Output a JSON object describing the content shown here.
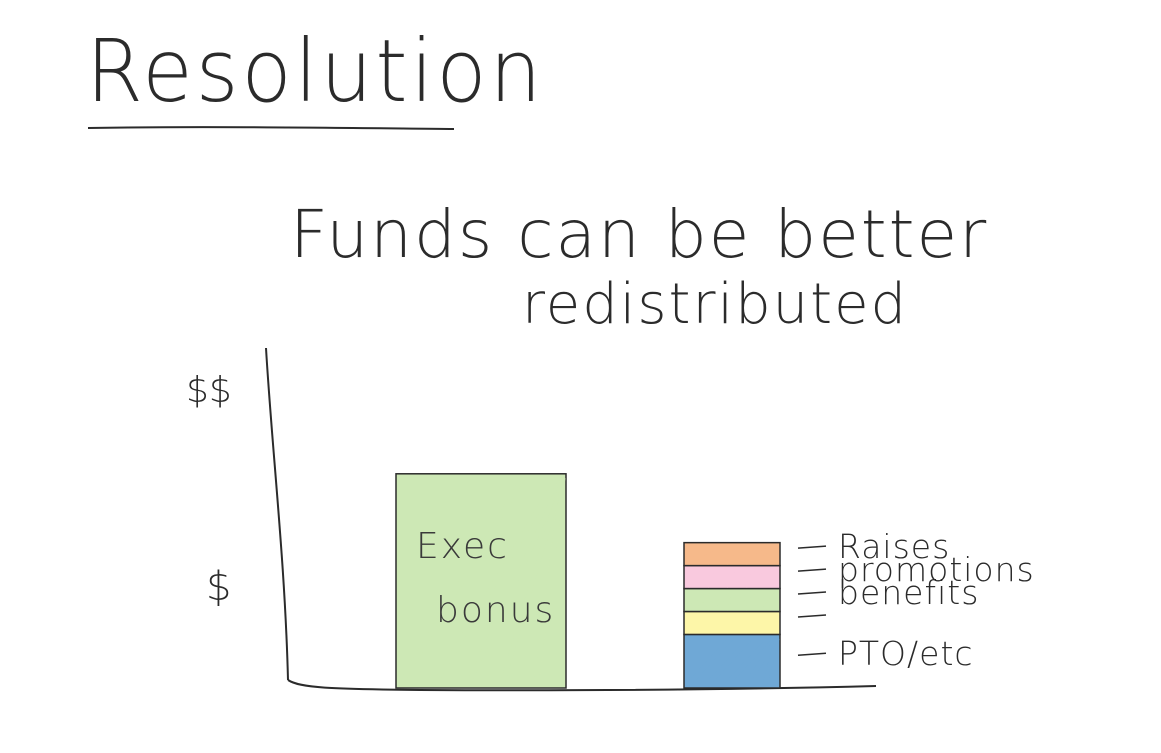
{
  "heading": "Resolution",
  "subtitle": {
    "line1": "Funds can be better",
    "line2": "redistributed"
  },
  "chart_data": {
    "type": "bar",
    "title": "",
    "xlabel": "",
    "ylabel": "",
    "y_ticks": [
      "$$",
      "$"
    ],
    "bars": [
      {
        "label_lines": [
          "Exec",
          "bonus"
        ],
        "stacked": false,
        "segments": [
          {
            "name": "",
            "value": 1.4,
            "color": "#cde8b5"
          }
        ]
      },
      {
        "label_lines": [],
        "stacked": true,
        "segments": [
          {
            "name": "PTO/etc",
            "value": 0.35,
            "color": "#6fa8d6"
          },
          {
            "name": "",
            "value": 0.15,
            "color": "#fdf6a8"
          },
          {
            "name": "benefits",
            "value": 0.15,
            "color": "#cde8b5"
          },
          {
            "name": "promotions",
            "value": 0.15,
            "color": "#f9c9de"
          },
          {
            "name": "Raises",
            "value": 0.15,
            "color": "#f6b98a"
          }
        ]
      }
    ],
    "grid": false,
    "legend": "right of second bar"
  }
}
